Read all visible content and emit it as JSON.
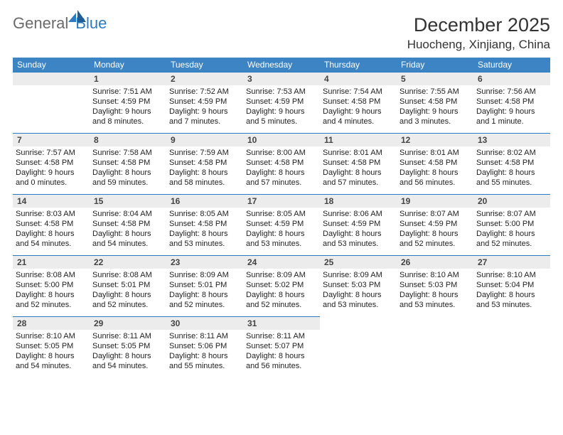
{
  "brand": {
    "name1": "General",
    "name2": "Blue"
  },
  "title": "December 2025",
  "location": "Huocheng, Xinjiang, China",
  "colors": {
    "header_bg": "#3d84c4",
    "rule": "#2b7bc0",
    "date_bg": "#ececec",
    "logo_gray": "#6b6b6b",
    "logo_blue": "#2b7bc0"
  },
  "daynames": [
    "Sunday",
    "Monday",
    "Tuesday",
    "Wednesday",
    "Thursday",
    "Friday",
    "Saturday"
  ],
  "leading_blanks": 1,
  "days": [
    {
      "n": 1,
      "sr": "7:51 AM",
      "ss": "4:59 PM",
      "dl": "9 hours and 8 minutes."
    },
    {
      "n": 2,
      "sr": "7:52 AM",
      "ss": "4:59 PM",
      "dl": "9 hours and 7 minutes."
    },
    {
      "n": 3,
      "sr": "7:53 AM",
      "ss": "4:59 PM",
      "dl": "9 hours and 5 minutes."
    },
    {
      "n": 4,
      "sr": "7:54 AM",
      "ss": "4:58 PM",
      "dl": "9 hours and 4 minutes."
    },
    {
      "n": 5,
      "sr": "7:55 AM",
      "ss": "4:58 PM",
      "dl": "9 hours and 3 minutes."
    },
    {
      "n": 6,
      "sr": "7:56 AM",
      "ss": "4:58 PM",
      "dl": "9 hours and 1 minute."
    },
    {
      "n": 7,
      "sr": "7:57 AM",
      "ss": "4:58 PM",
      "dl": "9 hours and 0 minutes."
    },
    {
      "n": 8,
      "sr": "7:58 AM",
      "ss": "4:58 PM",
      "dl": "8 hours and 59 minutes."
    },
    {
      "n": 9,
      "sr": "7:59 AM",
      "ss": "4:58 PM",
      "dl": "8 hours and 58 minutes."
    },
    {
      "n": 10,
      "sr": "8:00 AM",
      "ss": "4:58 PM",
      "dl": "8 hours and 57 minutes."
    },
    {
      "n": 11,
      "sr": "8:01 AM",
      "ss": "4:58 PM",
      "dl": "8 hours and 57 minutes."
    },
    {
      "n": 12,
      "sr": "8:01 AM",
      "ss": "4:58 PM",
      "dl": "8 hours and 56 minutes."
    },
    {
      "n": 13,
      "sr": "8:02 AM",
      "ss": "4:58 PM",
      "dl": "8 hours and 55 minutes."
    },
    {
      "n": 14,
      "sr": "8:03 AM",
      "ss": "4:58 PM",
      "dl": "8 hours and 54 minutes."
    },
    {
      "n": 15,
      "sr": "8:04 AM",
      "ss": "4:58 PM",
      "dl": "8 hours and 54 minutes."
    },
    {
      "n": 16,
      "sr": "8:05 AM",
      "ss": "4:58 PM",
      "dl": "8 hours and 53 minutes."
    },
    {
      "n": 17,
      "sr": "8:05 AM",
      "ss": "4:59 PM",
      "dl": "8 hours and 53 minutes."
    },
    {
      "n": 18,
      "sr": "8:06 AM",
      "ss": "4:59 PM",
      "dl": "8 hours and 53 minutes."
    },
    {
      "n": 19,
      "sr": "8:07 AM",
      "ss": "4:59 PM",
      "dl": "8 hours and 52 minutes."
    },
    {
      "n": 20,
      "sr": "8:07 AM",
      "ss": "5:00 PM",
      "dl": "8 hours and 52 minutes."
    },
    {
      "n": 21,
      "sr": "8:08 AM",
      "ss": "5:00 PM",
      "dl": "8 hours and 52 minutes."
    },
    {
      "n": 22,
      "sr": "8:08 AM",
      "ss": "5:01 PM",
      "dl": "8 hours and 52 minutes."
    },
    {
      "n": 23,
      "sr": "8:09 AM",
      "ss": "5:01 PM",
      "dl": "8 hours and 52 minutes."
    },
    {
      "n": 24,
      "sr": "8:09 AM",
      "ss": "5:02 PM",
      "dl": "8 hours and 52 minutes."
    },
    {
      "n": 25,
      "sr": "8:09 AM",
      "ss": "5:03 PM",
      "dl": "8 hours and 53 minutes."
    },
    {
      "n": 26,
      "sr": "8:10 AM",
      "ss": "5:03 PM",
      "dl": "8 hours and 53 minutes."
    },
    {
      "n": 27,
      "sr": "8:10 AM",
      "ss": "5:04 PM",
      "dl": "8 hours and 53 minutes."
    },
    {
      "n": 28,
      "sr": "8:10 AM",
      "ss": "5:05 PM",
      "dl": "8 hours and 54 minutes."
    },
    {
      "n": 29,
      "sr": "8:11 AM",
      "ss": "5:05 PM",
      "dl": "8 hours and 54 minutes."
    },
    {
      "n": 30,
      "sr": "8:11 AM",
      "ss": "5:06 PM",
      "dl": "8 hours and 55 minutes."
    },
    {
      "n": 31,
      "sr": "8:11 AM",
      "ss": "5:07 PM",
      "dl": "8 hours and 56 minutes."
    }
  ],
  "labels": {
    "sunrise": "Sunrise:",
    "sunset": "Sunset:",
    "daylight": "Daylight:"
  }
}
